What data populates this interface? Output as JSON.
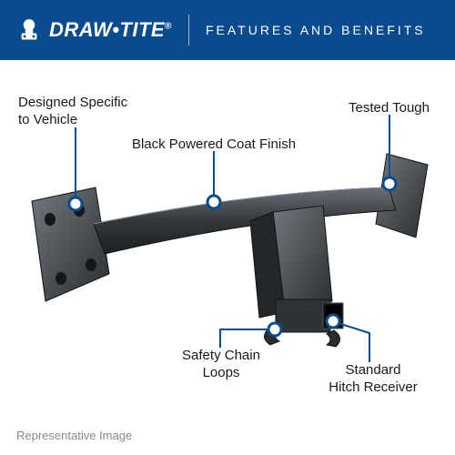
{
  "brand_color": "#0a4b8e",
  "marker_stroke": "#0a4b8e",
  "header": {
    "brand": "DRAW•TITE",
    "reg": "®",
    "tagline": "FEATURES AND BENEFITS"
  },
  "callouts": {
    "designed": "Designed Specific\nto Vehicle",
    "black_finish": "Black Powered Coat Finish",
    "tested": "Tested Tough",
    "safety": "Safety Chain\nLoops",
    "receiver": "Standard\nHitch Receiver"
  },
  "footer": "Representative Image",
  "product_colors": {
    "body_light": "#5d6268",
    "body_mid": "#3c4044",
    "body_dark": "#1e2124",
    "edge": "#111315"
  }
}
